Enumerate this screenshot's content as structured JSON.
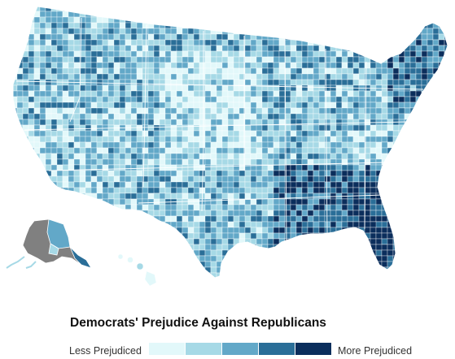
{
  "title": "Democrats' Prejudice Against Republicans",
  "legend": {
    "low_label": "Less Prejudiced",
    "high_label": "More Prejudiced",
    "colors": [
      "#e2f8fa",
      "#a6d9e6",
      "#62a8c8",
      "#2a6e98",
      "#0b2e5c"
    ]
  },
  "map": {
    "region": "United States counties",
    "no_data_color": "#808080",
    "border_color": "#ffffff",
    "state_labels": []
  }
}
